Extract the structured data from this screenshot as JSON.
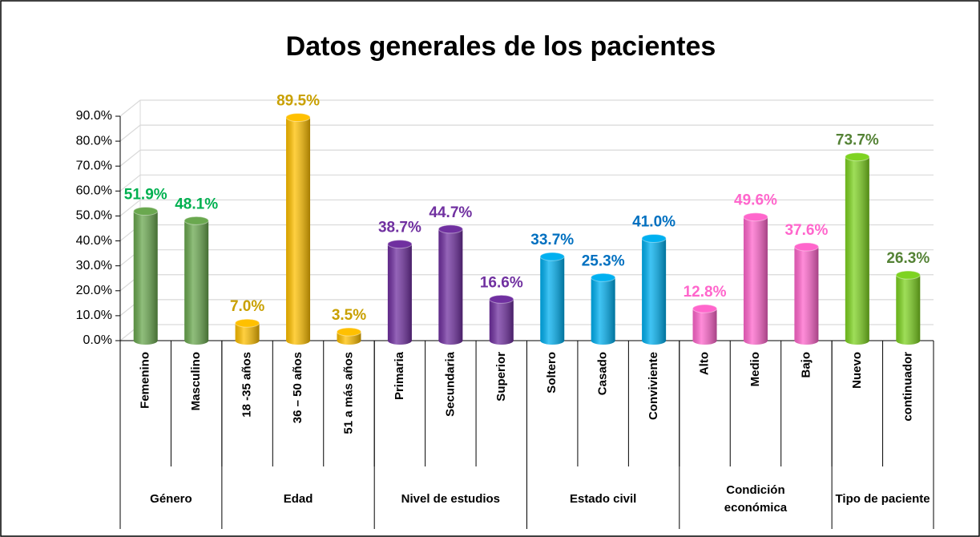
{
  "chart_data": {
    "type": "bar",
    "title": "Datos generales de los pacientes",
    "ylim": [
      0,
      90
    ],
    "yticks": [
      {
        "value": 0,
        "label": "0.0%"
      },
      {
        "value": 10,
        "label": "10.0%"
      },
      {
        "value": 20,
        "label": "20.0%"
      },
      {
        "value": 30,
        "label": "30.0%"
      },
      {
        "value": 40,
        "label": "40.0%"
      },
      {
        "value": 50,
        "label": "50.0%"
      },
      {
        "value": 60,
        "label": "60.0%"
      },
      {
        "value": 70,
        "label": "70.0%"
      },
      {
        "value": 80,
        "label": "80.0%"
      },
      {
        "value": 90,
        "label": "90.0%"
      }
    ],
    "grid": true,
    "groups": [
      {
        "name": "Género",
        "color": "#6aa84f",
        "label_color": "#00b050",
        "categories": [
          "Femenino",
          "Masculino"
        ],
        "values": [
          51.9,
          48.1
        ],
        "value_labels": [
          "51.9%",
          "48.1%"
        ]
      },
      {
        "name": "Edad",
        "color": "#ffc000",
        "label_color": "#c9a000",
        "categories": [
          "18 -35 años",
          "36 – 50 años",
          "51 a más años"
        ],
        "values": [
          7.0,
          89.5,
          3.5
        ],
        "value_labels": [
          "7.0%",
          "89.5%",
          "3.5%"
        ]
      },
      {
        "name": "Nivel de estudios",
        "color": "#7030a0",
        "label_color": "#7030a0",
        "categories": [
          "Primaria",
          "Secundaria",
          "Superior"
        ],
        "values": [
          38.7,
          44.7,
          16.6
        ],
        "value_labels": [
          "38.7%",
          "44.7%",
          "16.6%"
        ]
      },
      {
        "name": "Estado civil",
        "color": "#00b0f0",
        "label_color": "#0070c0",
        "categories": [
          "Soltero",
          "Casado",
          "Conviviente"
        ],
        "values": [
          33.7,
          25.3,
          41.0
        ],
        "value_labels": [
          "33.7%",
          "25.3%",
          "41.0%"
        ]
      },
      {
        "name": "Condición económica",
        "color": "#ff66cc",
        "label_color": "#ff66cc",
        "categories": [
          "Alto",
          "Medio",
          "Bajo"
        ],
        "values": [
          12.8,
          49.6,
          37.6
        ],
        "value_labels": [
          "12.8%",
          "49.6%",
          "37.6%"
        ]
      },
      {
        "name": "Tipo de paciente",
        "color": "#7ed321",
        "label_color": "#548235",
        "categories": [
          "Nuevo",
          "continuador"
        ],
        "values": [
          73.7,
          26.3
        ],
        "value_labels": [
          "73.7%",
          "26.3%"
        ]
      }
    ]
  }
}
